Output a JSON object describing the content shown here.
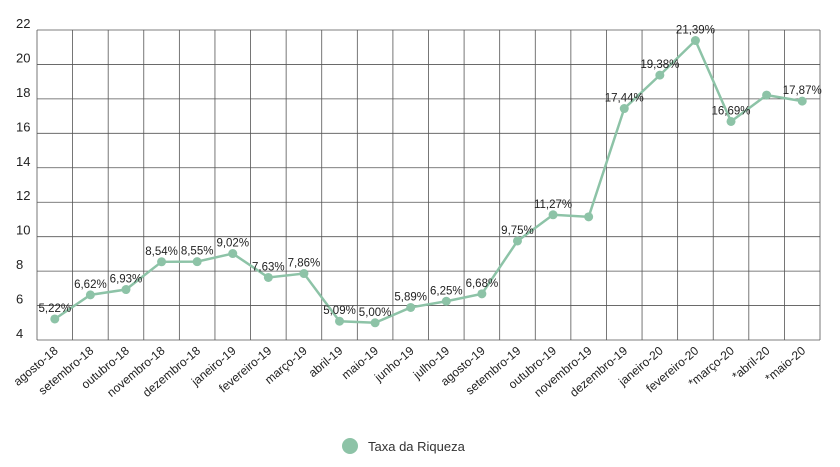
{
  "chart_data": {
    "type": "line",
    "title": "",
    "xlabel": "",
    "ylabel": "",
    "ylim": [
      4,
      22
    ],
    "yticks": [
      4,
      6,
      8,
      10,
      12,
      14,
      16,
      18,
      20,
      22
    ],
    "grid": true,
    "legend_position": "bottom",
    "categories": [
      "agosto-18",
      "setembro-18",
      "outubro-18",
      "novembro-18",
      "dezembro-18",
      "janeiro-19",
      "fevereiro-19",
      "março-19",
      "abril-19",
      "maio-19",
      "junho-19",
      "julho-19",
      "agosto-19",
      "setembro-19",
      "outubro-19",
      "novembro-19",
      "dezembro-19",
      "janeiro-20",
      "fevereiro-20",
      "*março-20",
      "*abril-20",
      "*maio-20"
    ],
    "series": [
      {
        "name": "Taxa da Riqueza",
        "color": "#8dc3a7",
        "values": [
          5.22,
          6.62,
          6.93,
          8.54,
          8.55,
          9.02,
          7.63,
          7.86,
          5.09,
          5.0,
          5.89,
          6.25,
          6.68,
          9.75,
          11.27,
          11.15,
          17.44,
          19.38,
          21.39,
          16.69,
          18.22,
          17.87
        ],
        "labels": [
          "5,22%",
          "6,62%",
          "6,93%",
          "8,54%",
          "8,55%",
          "9,02%",
          "7,63%",
          "7,86%",
          "5,09%",
          "5,00%",
          "5,89%",
          "6,25%",
          "6,68%",
          "9,75%",
          "11,27%",
          "",
          "17,44%",
          "19,38%",
          "21,39%",
          "16,69%",
          "",
          "17,87%"
        ]
      }
    ]
  }
}
